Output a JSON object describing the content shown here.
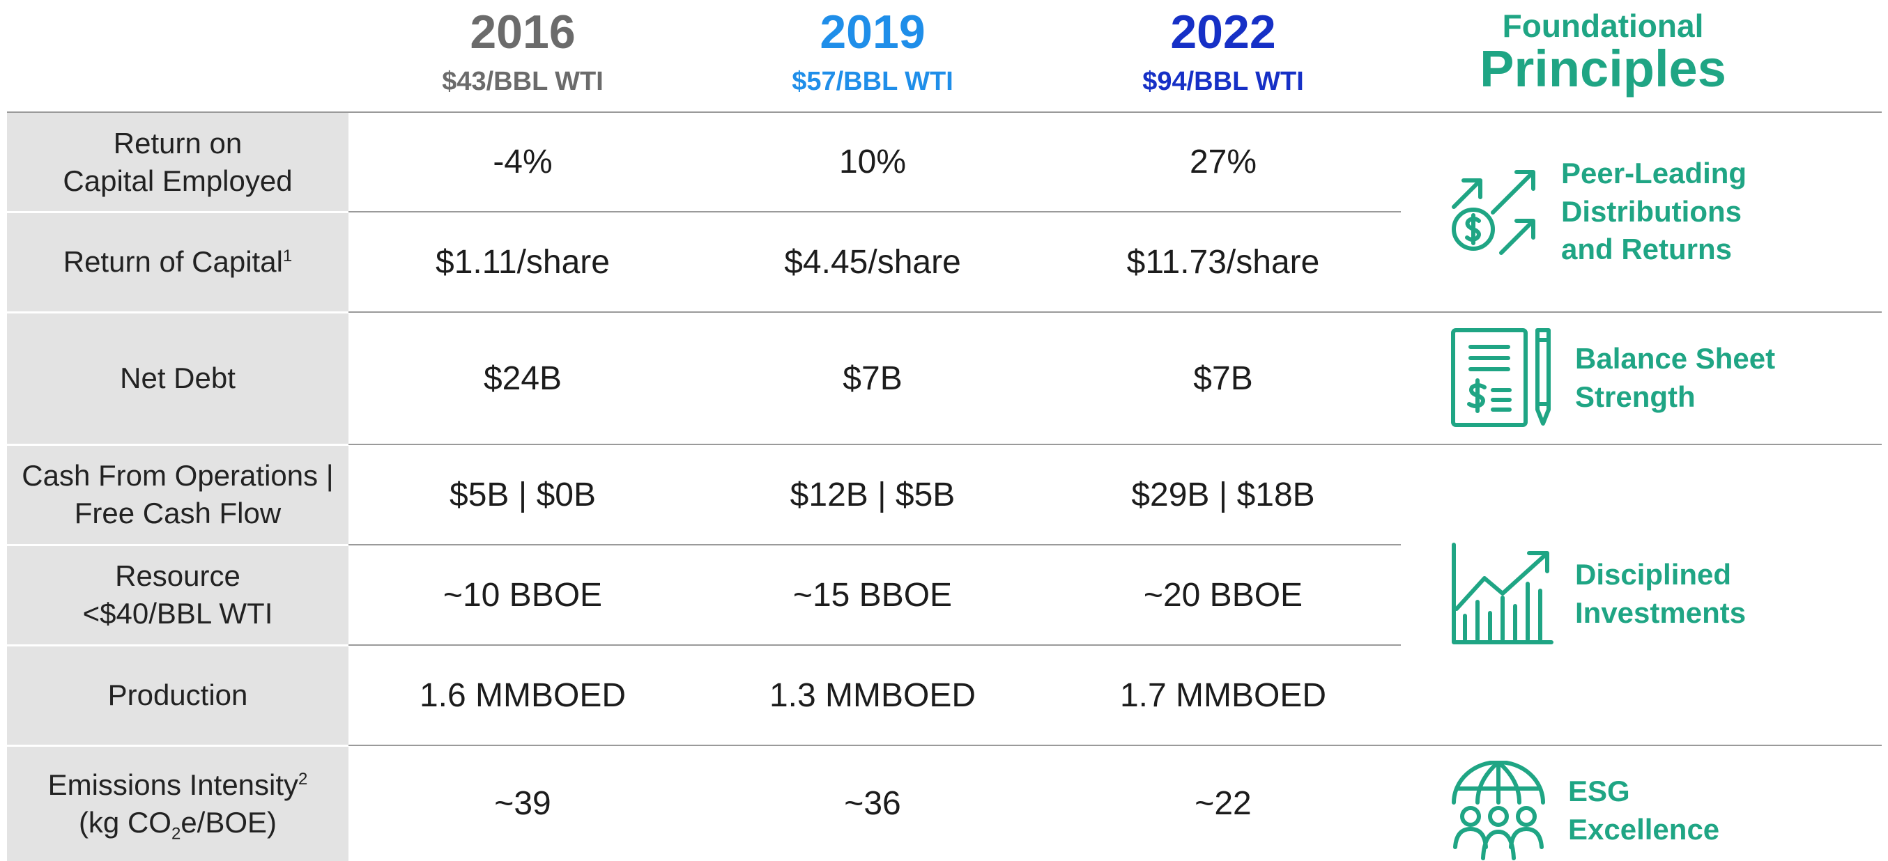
{
  "header": {
    "years": [
      {
        "year": "2016",
        "price": "$43/BBL WTI",
        "color": "#6b6b6b"
      },
      {
        "year": "2019",
        "price": "$57/BBL WTI",
        "color": "#1f8ee9"
      },
      {
        "year": "2022",
        "price": "$94/BBL WTI",
        "color": "#1630c6"
      }
    ],
    "foundational_top": "Foundational",
    "foundational_main": "Principles"
  },
  "rows": [
    {
      "label_line1": "Return on",
      "label_line2": "Capital Employed",
      "values": [
        "-4%",
        "10%",
        "27%"
      ]
    },
    {
      "label": "Return of Capital",
      "sup": "1",
      "values": [
        "$1.11/share",
        "$4.45/share",
        "$11.73/share"
      ]
    },
    {
      "label": "Net Debt",
      "values": [
        "$24B",
        "$7B",
        "$7B"
      ]
    },
    {
      "label_line1": "Cash From Operations |",
      "label_line2": "Free Cash Flow",
      "values": [
        "$5B | $0B",
        "$12B | $5B",
        "$29B | $18B"
      ]
    },
    {
      "label_line1": "Resource",
      "label_line2": "<$40/BBL WTI",
      "values": [
        "~10 BBOE",
        "~15 BBOE",
        "~20 BBOE"
      ]
    },
    {
      "label": "Production",
      "values": [
        "1.6 MMBOED",
        "1.3 MMBOED",
        "1.7 MMBOED"
      ]
    },
    {
      "label_line1": "Emissions Intensity",
      "label_line1_sup": "2",
      "label_line2_pre": "(kg CO",
      "label_line2_sub": "2",
      "label_line2_post": "e/BOE)",
      "values": [
        "~39",
        "~36",
        "~22"
      ]
    }
  ],
  "principles": [
    {
      "icon": "arrows-dollar-icon",
      "lines": [
        "Peer-Leading",
        "Distributions",
        "and Returns"
      ]
    },
    {
      "icon": "balance-sheet-icon",
      "lines": [
        "Balance Sheet",
        "Strength"
      ]
    },
    {
      "icon": "growth-chart-icon",
      "lines": [
        "Disciplined",
        "Investments"
      ]
    },
    {
      "icon": "esg-globe-people-icon",
      "lines": [
        "ESG",
        "Excellence"
      ]
    }
  ],
  "colors": {
    "accent": "#1fa584",
    "label_bg": "#e3e3e3",
    "rule": "#9a9a9a"
  }
}
